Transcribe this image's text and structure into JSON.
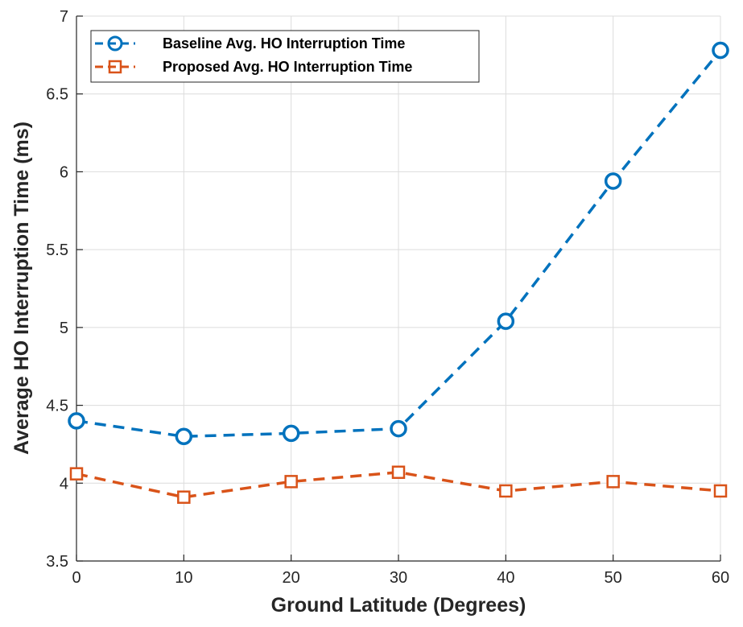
{
  "chart_data": {
    "type": "line",
    "title": "",
    "xlabel": "Ground Latitude (Degrees)",
    "ylabel": "Average HO Interruption Time (ms)",
    "xlim": [
      0,
      60
    ],
    "ylim": [
      3.5,
      7
    ],
    "xticks": [
      0,
      10,
      20,
      30,
      40,
      50,
      60
    ],
    "yticks": [
      3.5,
      4,
      4.5,
      5,
      5.5,
      6,
      6.5,
      7
    ],
    "xtick_labels": [
      "0",
      "10",
      "20",
      "30",
      "40",
      "50",
      "60"
    ],
    "ytick_labels": [
      "3.5",
      "4",
      "4.5",
      "5",
      "5.5",
      "6",
      "6.5",
      "7"
    ],
    "grid": true,
    "legend_position": "top-left",
    "x": [
      0,
      10,
      20,
      30,
      40,
      50,
      60
    ],
    "series": [
      {
        "name": "Baseline Avg. HO Interruption Time",
        "values": [
          4.4,
          4.3,
          4.32,
          4.35,
          5.04,
          5.94,
          6.78
        ],
        "color": "#0072BD",
        "marker": "circle",
        "line_style": "dashed"
      },
      {
        "name": "Proposed Avg. HO Interruption Time",
        "values": [
          4.06,
          3.91,
          4.01,
          4.07,
          3.95,
          4.01,
          3.95
        ],
        "color": "#D95319",
        "marker": "square",
        "line_style": "dashed"
      }
    ]
  }
}
